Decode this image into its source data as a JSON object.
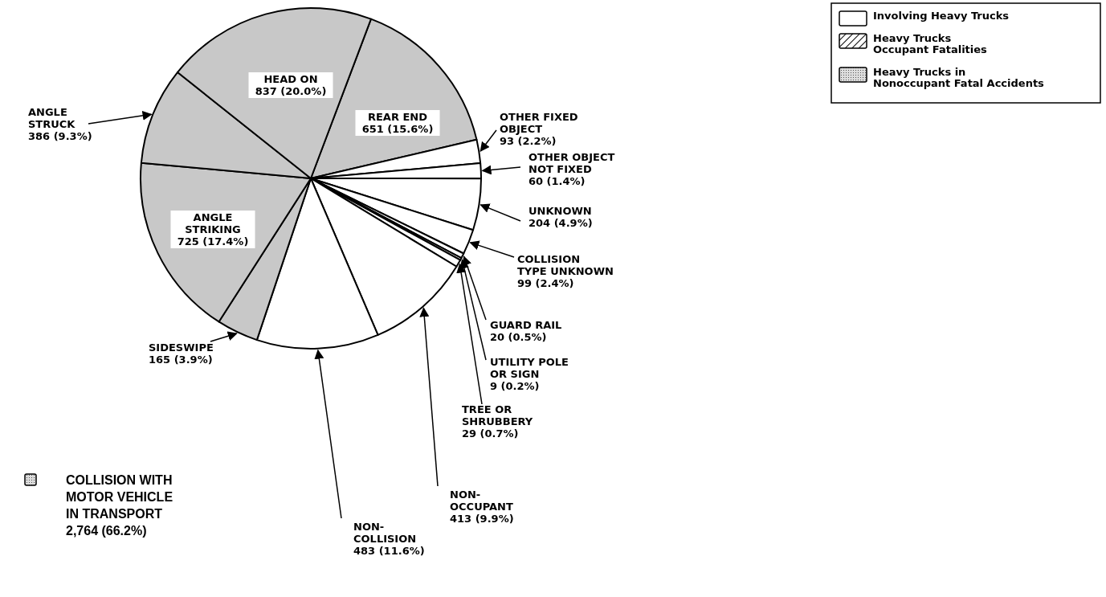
{
  "chart_data": {
    "type": "pie",
    "categories": [
      "REAR END",
      "OTHER FIXED OBJECT",
      "OTHER OBJECT NOT FIXED",
      "UNKNOWN",
      "COLLISION TYPE UNKNOWN",
      "GUARD RAIL",
      "UTILITY POLE OR SIGN",
      "TREE OR SHRUBBERY",
      "NON-OCCUPANT",
      "NON-COLLISION",
      "SIDESWIPE",
      "ANGLE STRIKING",
      "ANGLE STRUCK",
      "HEAD ON"
    ],
    "values": [
      651,
      93,
      60,
      204,
      99,
      20,
      9,
      29,
      413,
      483,
      165,
      725,
      386,
      837
    ],
    "value_labels": [
      "651 (15.6%)",
      "93 (2.2%)",
      "60 (1.4%)",
      "204 (4.9%)",
      "99 (2.4%)",
      "20 (0.5%)",
      "9 (0.2%)",
      "29 (0.7%)",
      "413 (9.9%)",
      "483 (11.6%)",
      "165 (3.9%)",
      "725 (17.4%)",
      "386 (9.3%)",
      "837 (20.0%)"
    ],
    "colors": [
      "#c8c8c8",
      "#ffffff",
      "#ffffff",
      "#ffffff",
      "#ffffff",
      "#ffffff",
      "#ffffff",
      "#ffffff",
      "#ffffff",
      "#ffffff",
      "#c8c8c8",
      "#c8c8c8",
      "#c8c8c8",
      "#c8c8c8"
    ],
    "annotations": [
      "Involving Heavy Trucks",
      "Heavy Trucks Occupant Fatalities",
      "Heavy Trucks in Nonoccupant Fatal Accidents",
      "COLLISION WITH MOTOR VEHICLE IN TRANSPORT 2,764 (66.2%)"
    ]
  }
}
